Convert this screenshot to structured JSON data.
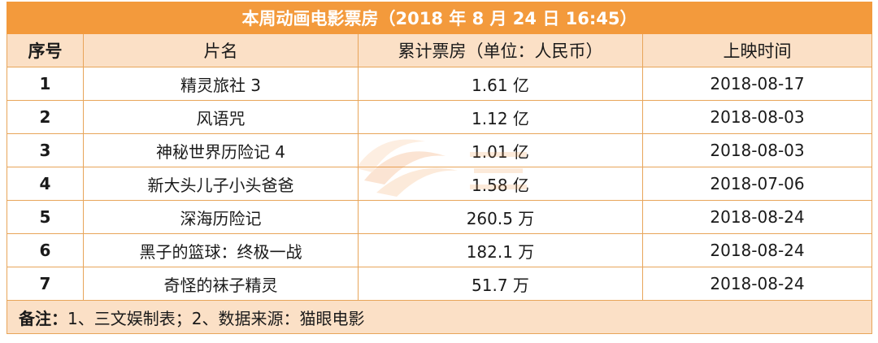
{
  "title": "本周动画电影票房（2018 年 8 月 24 日  16:45）",
  "headers": {
    "index": "序号",
    "name": "片名",
    "box_office": "累计票房（单位：人民币）",
    "release": "上映时间"
  },
  "rows": [
    {
      "index": "1",
      "name": "精灵旅社 3",
      "box_office": "1.61 亿",
      "release": "2018-08-17"
    },
    {
      "index": "2",
      "name": "风语咒",
      "box_office": "1.12 亿",
      "release": "2018-08-03"
    },
    {
      "index": "3",
      "name": "神秘世界历险记 4",
      "box_office": "1.01 亿",
      "release": "2018-08-03"
    },
    {
      "index": "4",
      "name": "新大头儿子小头爸爸",
      "box_office": "1.58 亿",
      "release": "2018-07-06"
    },
    {
      "index": "5",
      "name": "深海历险记",
      "box_office": "260.5 万",
      "release": "2018-08-24"
    },
    {
      "index": "6",
      "name": "黑子的篮球：终极一战",
      "box_office": "182.1 万",
      "release": "2018-08-24"
    },
    {
      "index": "7",
      "name": "奇怪的袜子精灵",
      "box_office": "51.7 万",
      "release": "2018-08-24"
    }
  ],
  "note": {
    "label": "备注：",
    "text": "1、三文娱制表；2、数据来源：猫眼电影"
  },
  "colors": {
    "title_bg": "#f39a3c",
    "header_bg": "#fbe0c6",
    "border": "#e8a55a"
  },
  "watermark": {
    "icon": "sanwenyu-logo-icon"
  }
}
